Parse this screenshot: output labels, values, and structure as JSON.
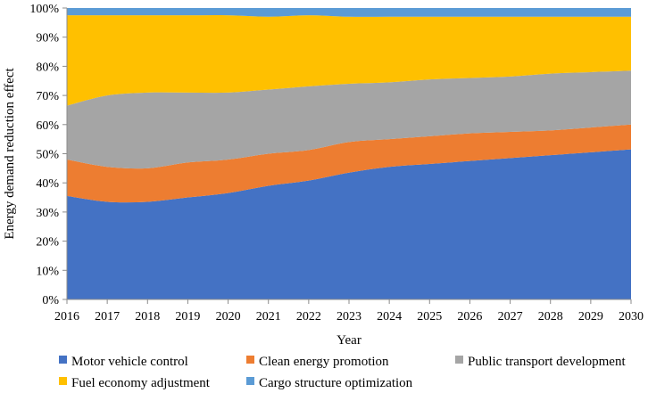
{
  "chart_data": {
    "type": "area",
    "stacked": true,
    "normalized_percent": true,
    "xlabel": "Year",
    "ylabel": "Energy demand reduction effect",
    "x": [
      2016,
      2017,
      2018,
      2019,
      2020,
      2021,
      2022,
      2023,
      2024,
      2025,
      2026,
      2027,
      2028,
      2029,
      2030
    ],
    "ylim": [
      0,
      100
    ],
    "y_ticks": [
      "0%",
      "10%",
      "20%",
      "30%",
      "40%",
      "50%",
      "60%",
      "70%",
      "80%",
      "90%",
      "100%"
    ],
    "legend_position": "bottom",
    "series": [
      {
        "name": "Motor vehicle control",
        "color": "#4472C4",
        "values": [
          35.5,
          33.5,
          33.5,
          35,
          36.5,
          39,
          41,
          43.5,
          45.5,
          46.5,
          47.5,
          48.5,
          49.5,
          50.5,
          51.5
        ]
      },
      {
        "name": "Clean energy promotion",
        "color": "#ED7D31",
        "values": [
          12.5,
          12,
          11.5,
          12,
          11.5,
          11,
          10.5,
          10.5,
          9.5,
          9.5,
          9.5,
          9,
          8.5,
          8.5,
          8.5
        ]
      },
      {
        "name": "Public transport development",
        "color": "#A5A5A5",
        "values": [
          18.5,
          24.5,
          26,
          24,
          23,
          22,
          22,
          20,
          19.5,
          19.5,
          19,
          19,
          19.5,
          19,
          18.5
        ]
      },
      {
        "name": "Fuel economy adjustment",
        "color": "#FFC000",
        "values": [
          31,
          27.5,
          26.5,
          26.5,
          26.5,
          25,
          24.5,
          23,
          22.5,
          21.5,
          21,
          20.5,
          19.5,
          19,
          18.5
        ]
      },
      {
        "name": "Cargo structure optimization",
        "color": "#5B9BD5",
        "values": [
          2.5,
          2.5,
          2.5,
          2.5,
          2.5,
          3,
          2.5,
          3,
          3,
          3,
          3,
          3,
          3,
          3,
          3
        ]
      }
    ]
  }
}
